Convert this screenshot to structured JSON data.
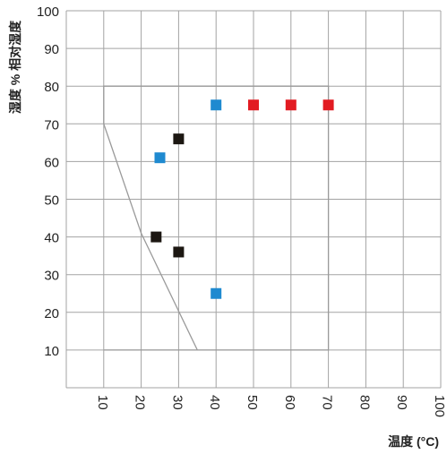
{
  "chart_data": {
    "type": "scatter",
    "title": "",
    "xlabel": "温度 (°C)",
    "ylabel": "湿度 % 相对湿度",
    "xlim": [
      0,
      100
    ],
    "ylim": [
      0,
      100
    ],
    "x_ticks": [
      "10",
      "20",
      "30",
      "40",
      "50",
      "60",
      "70",
      "80",
      "90",
      "100"
    ],
    "y_ticks": [
      "10",
      "20",
      "30",
      "40",
      "50",
      "60",
      "70",
      "80",
      "90",
      "100"
    ],
    "grid": true,
    "boundary": {
      "x": [
        10,
        35,
        70,
        70,
        10,
        10
      ],
      "y": [
        10,
        10,
        10,
        80,
        80,
        70
      ],
      "diagonal": [
        [
          10,
          70
        ],
        [
          20,
          41
        ],
        [
          35,
          10
        ]
      ]
    },
    "series": [
      {
        "color": "#1f8ad0",
        "points": [
          [
            40,
            75
          ],
          [
            25,
            61
          ],
          [
            40,
            25
          ]
        ]
      },
      {
        "color": "#e21b22",
        "points": [
          [
            50,
            75
          ],
          [
            60,
            75
          ],
          [
            70,
            75
          ]
        ]
      },
      {
        "color": "#1c1712",
        "points": [
          [
            30,
            66
          ],
          [
            24,
            40
          ],
          [
            30,
            36
          ]
        ]
      }
    ],
    "colors": {
      "grid": "#a3a3a3",
      "boundary": "#9a9a9a",
      "text": "#222222"
    }
  }
}
